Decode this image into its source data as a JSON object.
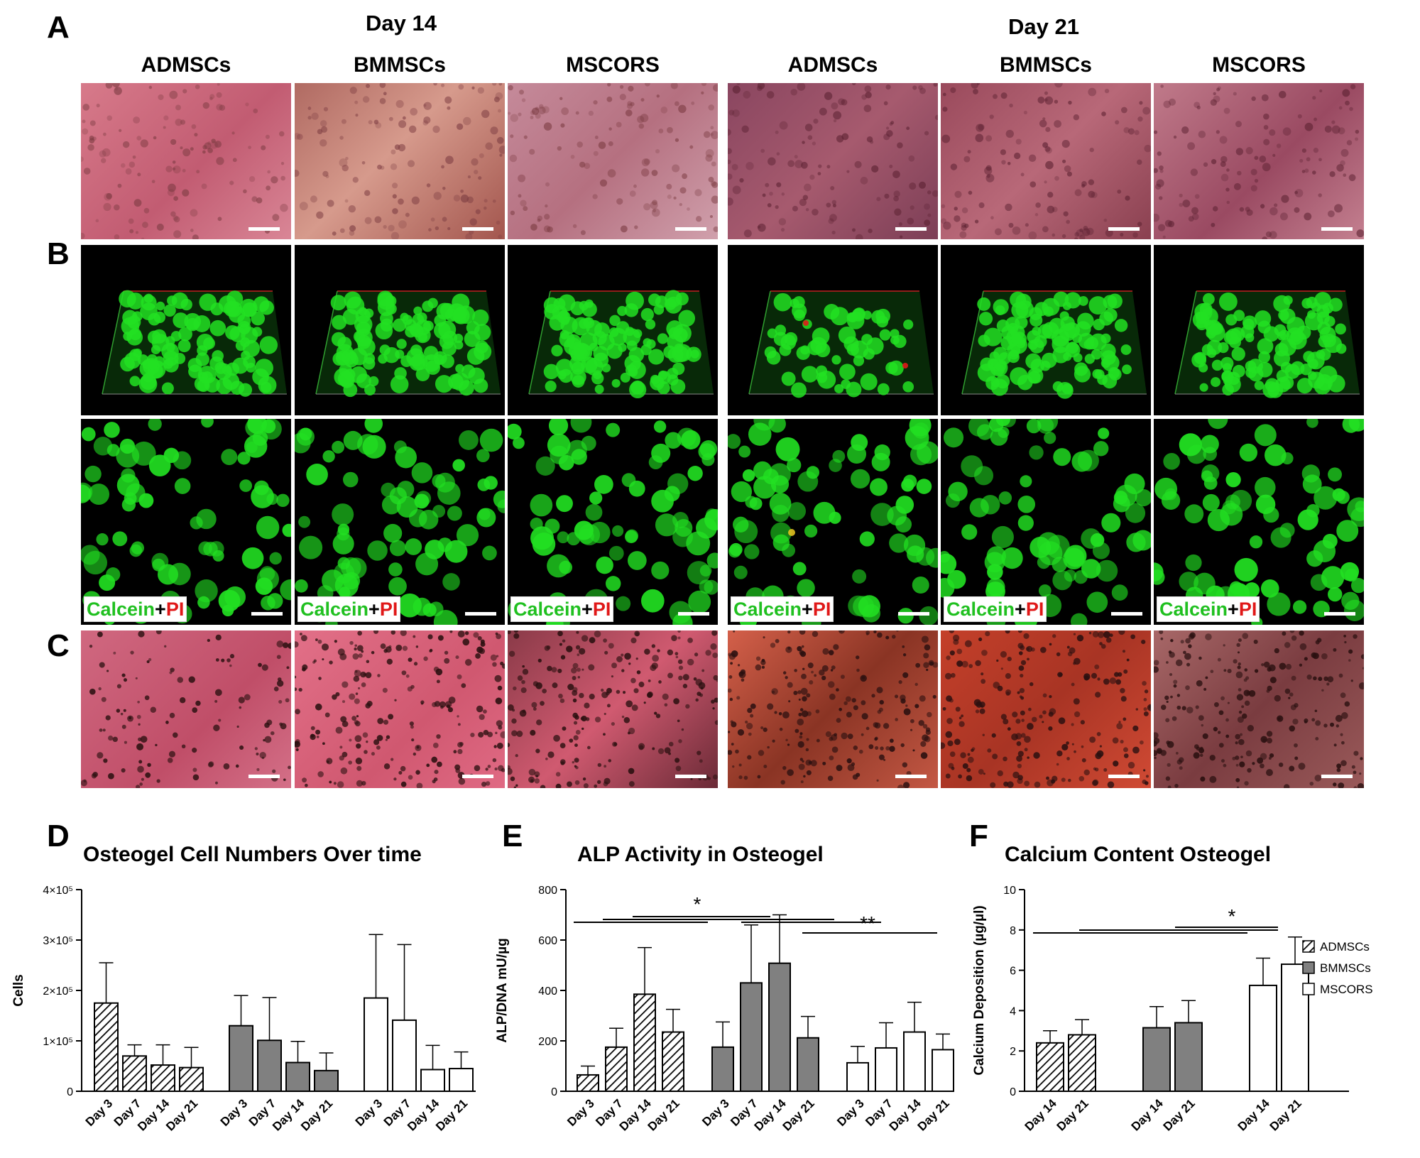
{
  "figure": {
    "panel_letters": [
      "A",
      "B",
      "C",
      "D",
      "E",
      "F"
    ],
    "day_headers": [
      "Day 14",
      "Day 21"
    ],
    "column_headers": [
      "ADMSCs",
      "BMMSCs",
      "MSCORS",
      "ADMSCs",
      "BMMSCs",
      "MSCORS"
    ],
    "stain_label": {
      "calcein": "Calcein",
      "plus": "+",
      "pi": "PI"
    },
    "colors": {
      "bright_field": "#b8546a",
      "live_stain": "#22e022",
      "dead_stain": "#e01818",
      "alizarin_day14": "#c4506a",
      "alizarin_day21": "#c8402c"
    }
  },
  "legend": {
    "items": [
      {
        "label": "ADMSCs",
        "pattern": "hatched"
      },
      {
        "label": "BMMSCs",
        "pattern": "grey",
        "color": "#808080"
      },
      {
        "label": "MSCORS",
        "pattern": "white"
      }
    ]
  },
  "chart_data": [
    {
      "id": "D",
      "type": "bar",
      "title": "Osteogel Cell Numbers Over time",
      "ylabel": "Cells",
      "ylim": [
        0,
        400000
      ],
      "yticks": [
        "0",
        "1×10⁵",
        "2×10⁵",
        "3×10⁵",
        "4×10⁵"
      ],
      "ytick_values": [
        0,
        100000,
        200000,
        300000,
        400000
      ],
      "categories": [
        "Day 3",
        "Day 7",
        "Day 14",
        "Day 21"
      ],
      "series": [
        {
          "name": "ADMSCs",
          "values": [
            175000,
            70000,
            52000,
            47000
          ],
          "error": [
            80000,
            22000,
            40000,
            40000
          ]
        },
        {
          "name": "BMMSCs",
          "values": [
            130000,
            101000,
            57000,
            41000
          ],
          "error": [
            60000,
            85000,
            42000,
            35000
          ]
        },
        {
          "name": "MSCORS",
          "values": [
            185000,
            141000,
            43000,
            45000
          ],
          "error": [
            126000,
            150000,
            48000,
            33000
          ]
        }
      ]
    },
    {
      "id": "E",
      "type": "bar",
      "title": "ALP Activity in Osteogel",
      "ylabel": "ALP/DNA mU/µg",
      "ylim": [
        0,
        800
      ],
      "yticks": [
        "0",
        "200",
        "400",
        "600",
        "800"
      ],
      "ytick_values": [
        0,
        200,
        400,
        600,
        800
      ],
      "categories": [
        "Day 3",
        "Day 7",
        "Day 14",
        "Day 21"
      ],
      "series": [
        {
          "name": "ADMSCs",
          "values": [
            65,
            175,
            385,
            235
          ],
          "error": [
            35,
            75,
            185,
            90
          ]
        },
        {
          "name": "BMMSCs",
          "values": [
            175,
            430,
            508,
            212
          ],
          "error": [
            100,
            230,
            192,
            85
          ]
        },
        {
          "name": "MSCORS",
          "values": [
            113,
            172,
            235,
            165
          ],
          "error": [
            65,
            100,
            118,
            62
          ]
        }
      ],
      "significance": [
        "*",
        "**"
      ]
    },
    {
      "id": "F",
      "type": "bar",
      "title": "Calcium Content Osteogel",
      "ylabel": "Calcium Deposition (µg/µl)",
      "ylim": [
        0,
        10
      ],
      "yticks": [
        "0",
        "2",
        "4",
        "6",
        "8",
        "10"
      ],
      "ytick_values": [
        0,
        2,
        4,
        6,
        8,
        10
      ],
      "categories": [
        "Day 14",
        "Day 21"
      ],
      "series": [
        {
          "name": "ADMSCs",
          "values": [
            2.4,
            2.8
          ],
          "error": [
            0.6,
            0.75
          ]
        },
        {
          "name": "BMMSCs",
          "values": [
            3.15,
            3.4
          ],
          "error": [
            1.05,
            1.1
          ]
        },
        {
          "name": "MSCORS",
          "values": [
            5.25,
            6.3
          ],
          "error": [
            1.35,
            1.35
          ]
        }
      ],
      "significance": [
        "*"
      ]
    }
  ]
}
